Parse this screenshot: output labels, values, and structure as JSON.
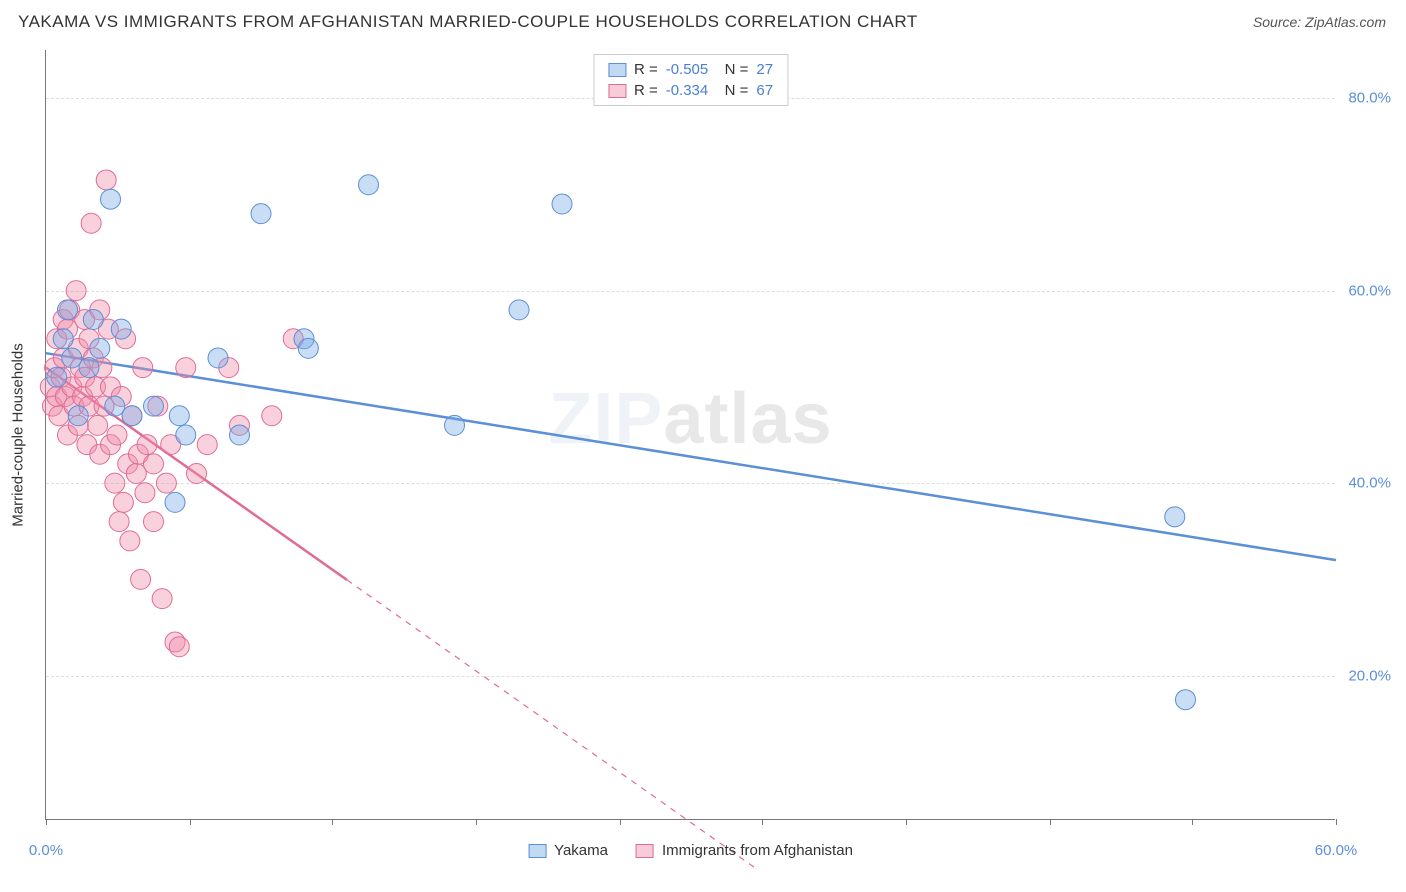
{
  "title": "YAKAMA VS IMMIGRANTS FROM AFGHANISTAN MARRIED-COUPLE HOUSEHOLDS CORRELATION CHART",
  "source": "Source: ZipAtlas.com",
  "watermark_prefix": "ZIP",
  "watermark_suffix": "atlas",
  "y_axis_label": "Married-couple Households",
  "chart": {
    "type": "scatter",
    "background_color": "#ffffff",
    "grid_color": "#dddddd",
    "axis_color": "#777777",
    "tick_label_color": "#5b8fd6",
    "xlim": [
      0,
      60
    ],
    "ylim": [
      5,
      85
    ],
    "y_ticks": [
      20,
      40,
      60,
      80
    ],
    "y_tick_labels": [
      "20.0%",
      "40.0%",
      "60.0%",
      "80.0%"
    ],
    "x_ticks": [
      0,
      6.7,
      13.3,
      20,
      26.7,
      33.3,
      40,
      46.7,
      53.3,
      60
    ],
    "x_tick_labels": {
      "0": "0.0%",
      "60": "60.0%"
    },
    "series": [
      {
        "name": "Yakama",
        "color_fill": "rgba(120,170,230,0.40)",
        "color_stroke": "#5b8fd6",
        "marker_radius": 10,
        "R": "-0.505",
        "N": "27",
        "trend": {
          "x1": 0,
          "y1": 53.5,
          "x2": 60,
          "y2": 32,
          "solid_until_x": 60,
          "stroke_width": 2.5
        },
        "points": [
          [
            0.5,
            51
          ],
          [
            0.8,
            55
          ],
          [
            1.0,
            58
          ],
          [
            1.2,
            53
          ],
          [
            1.5,
            47
          ],
          [
            2.0,
            52
          ],
          [
            2.2,
            57
          ],
          [
            2.5,
            54
          ],
          [
            3.0,
            69.5
          ],
          [
            3.2,
            48
          ],
          [
            3.5,
            56
          ],
          [
            4.0,
            47
          ],
          [
            5.0,
            48
          ],
          [
            6.0,
            38
          ],
          [
            6.2,
            47
          ],
          [
            6.5,
            45
          ],
          [
            8.0,
            53
          ],
          [
            9.0,
            45
          ],
          [
            10.0,
            68
          ],
          [
            12.0,
            55
          ],
          [
            12.2,
            54
          ],
          [
            15.0,
            71
          ],
          [
            19.0,
            46
          ],
          [
            22.0,
            58
          ],
          [
            24.0,
            69
          ],
          [
            52.5,
            36.5
          ],
          [
            53.0,
            17.5
          ]
        ]
      },
      {
        "name": "Immigrants from Afghanistan",
        "color_fill": "rgba(240,140,170,0.40)",
        "color_stroke": "#e06b95",
        "marker_radius": 10,
        "R": "-0.334",
        "N": "67",
        "trend": {
          "x1": 0,
          "y1": 52,
          "x2": 33,
          "y2": 0,
          "solid_until_x": 14,
          "stroke_width": 2.5
        },
        "points": [
          [
            0.2,
            50
          ],
          [
            0.3,
            48
          ],
          [
            0.4,
            52
          ],
          [
            0.5,
            49
          ],
          [
            0.5,
            55
          ],
          [
            0.6,
            47
          ],
          [
            0.7,
            51
          ],
          [
            0.8,
            57
          ],
          [
            0.8,
            53
          ],
          [
            0.9,
            49
          ],
          [
            1.0,
            56
          ],
          [
            1.0,
            45
          ],
          [
            1.1,
            58
          ],
          [
            1.2,
            50
          ],
          [
            1.3,
            48
          ],
          [
            1.4,
            60
          ],
          [
            1.5,
            54
          ],
          [
            1.5,
            46
          ],
          [
            1.6,
            52
          ],
          [
            1.7,
            49
          ],
          [
            1.8,
            57
          ],
          [
            1.8,
            51
          ],
          [
            1.9,
            44
          ],
          [
            2.0,
            55
          ],
          [
            2.0,
            48
          ],
          [
            2.1,
            67
          ],
          [
            2.2,
            53
          ],
          [
            2.3,
            50
          ],
          [
            2.4,
            46
          ],
          [
            2.5,
            58
          ],
          [
            2.5,
            43
          ],
          [
            2.6,
            52
          ],
          [
            2.7,
            48
          ],
          [
            2.8,
            71.5
          ],
          [
            2.9,
            56
          ],
          [
            3.0,
            50
          ],
          [
            3.0,
            44
          ],
          [
            3.2,
            40
          ],
          [
            3.3,
            45
          ],
          [
            3.4,
            36
          ],
          [
            3.5,
            49
          ],
          [
            3.6,
            38
          ],
          [
            3.7,
            55
          ],
          [
            3.8,
            42
          ],
          [
            3.9,
            34
          ],
          [
            4.0,
            47
          ],
          [
            4.2,
            41
          ],
          [
            4.3,
            43
          ],
          [
            4.4,
            30
          ],
          [
            4.5,
            52
          ],
          [
            4.6,
            39
          ],
          [
            4.7,
            44
          ],
          [
            5.0,
            36
          ],
          [
            5.0,
            42
          ],
          [
            5.2,
            48
          ],
          [
            5.4,
            28
          ],
          [
            5.6,
            40
          ],
          [
            5.8,
            44
          ],
          [
            6.0,
            23.5
          ],
          [
            6.2,
            23
          ],
          [
            6.5,
            52
          ],
          [
            7.0,
            41
          ],
          [
            7.5,
            44
          ],
          [
            8.5,
            52
          ],
          [
            9.0,
            46
          ],
          [
            10.5,
            47
          ],
          [
            11.5,
            55
          ]
        ]
      }
    ]
  },
  "legend_bottom": [
    {
      "label": "Yakama",
      "swatch": "blue"
    },
    {
      "label": "Immigrants from Afghanistan",
      "swatch": "pink"
    }
  ]
}
